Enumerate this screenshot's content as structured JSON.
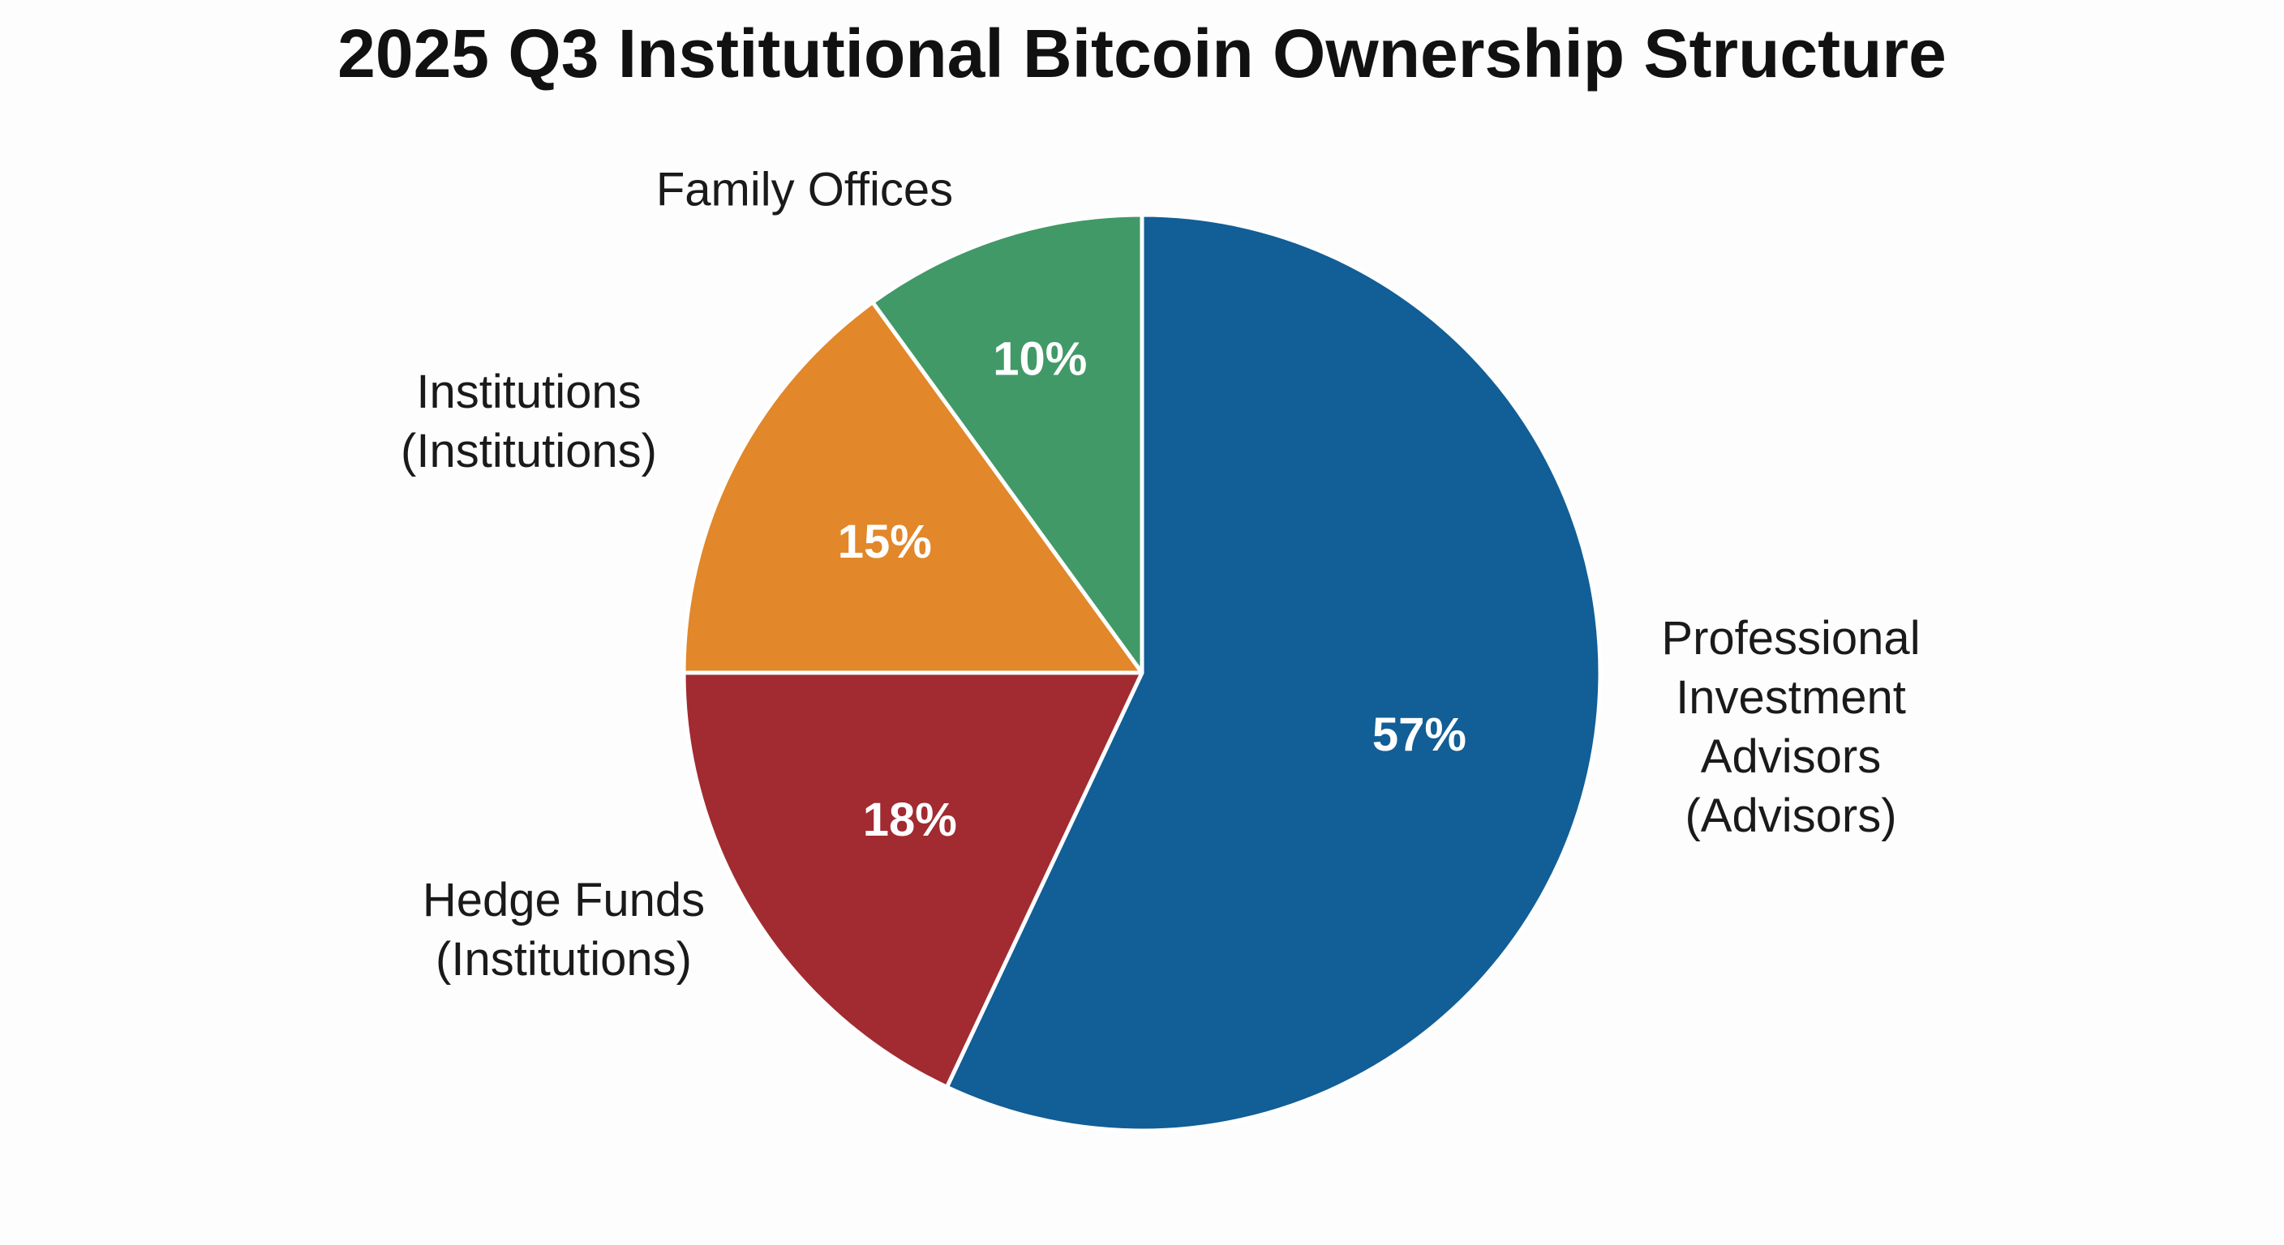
{
  "chart_data": {
    "type": "pie",
    "title": "2025 Q3 Institutional Bitcoin Ownership Structure",
    "legend": "none",
    "slices": [
      {
        "label_lines": [
          "Professional",
          "Investment",
          "Advisors",
          "(Advisors)"
        ],
        "value": 57,
        "value_label": "57%",
        "color": "#125e96"
      },
      {
        "label_lines": [
          "Hedge Funds",
          "(Institutions)"
        ],
        "value": 18,
        "value_label": "18%",
        "color": "#a12b31"
      },
      {
        "label_lines": [
          "Institutions",
          "(Institutions)"
        ],
        "value": 15,
        "value_label": "15%",
        "color": "#e2872a"
      },
      {
        "label_lines": [
          "Family Offices"
        ],
        "value": 10,
        "value_label": "10%",
        "color": "#419967"
      }
    ]
  }
}
